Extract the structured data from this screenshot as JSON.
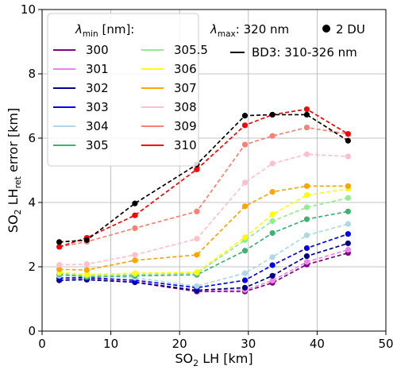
{
  "chart_data": {
    "type": "line",
    "xlabel": "SO₂ LH [km]",
    "ylabel": "SO₂ LHret error [km]",
    "xlim": [
      0,
      50
    ],
    "ylim": [
      0,
      10
    ],
    "xticks": [
      0,
      10,
      20,
      30,
      40,
      50
    ],
    "yticks": [
      0,
      2,
      4,
      6,
      8,
      10
    ],
    "grid": true,
    "x": [
      2.5,
      6.5,
      13.5,
      22.5,
      29.5,
      33.5,
      38.5,
      44.5
    ],
    "legend": {
      "placement": "upper-left",
      "title": "λmin [nm]:",
      "title_symbol": "λ",
      "title_sub": "min",
      "title_rest": " [nm]:"
    },
    "annotations": {
      "lambda_max_symbol": "λ",
      "lambda_max_sub": "max",
      "lambda_max_rest": ": 320 nm",
      "dot_label": "2 DU",
      "line_label": "BD3: 310-326 nm"
    },
    "series": [
      {
        "name": "300",
        "color": "#800080",
        "values": [
          1.58,
          1.6,
          1.52,
          1.23,
          1.23,
          1.5,
          2.07,
          2.43
        ]
      },
      {
        "name": "301",
        "color": "#ee82ee",
        "values": [
          1.6,
          1.62,
          1.53,
          1.27,
          1.28,
          1.57,
          2.15,
          2.53
        ]
      },
      {
        "name": "302",
        "color": "#00008b",
        "values": [
          1.58,
          1.6,
          1.52,
          1.27,
          1.35,
          1.72,
          2.33,
          2.73
        ]
      },
      {
        "name": "303",
        "color": "#0000ff",
        "values": [
          1.65,
          1.66,
          1.58,
          1.35,
          1.58,
          2.05,
          2.58,
          3.02
        ]
      },
      {
        "name": "304",
        "color": "#add8e6",
        "values": [
          1.72,
          1.72,
          1.66,
          1.4,
          1.8,
          2.3,
          2.98,
          3.33
        ]
      },
      {
        "name": "305",
        "color": "#3cb371",
        "values": [
          1.77,
          1.68,
          1.72,
          1.75,
          2.5,
          3.05,
          3.48,
          3.72
        ]
      },
      {
        "name": "305.5",
        "color": "#90ee90",
        "values": [
          1.8,
          1.73,
          1.77,
          1.8,
          2.83,
          3.42,
          3.85,
          4.14
        ]
      },
      {
        "name": "306",
        "color": "#ffff00",
        "values": [
          1.83,
          1.76,
          1.8,
          1.83,
          2.92,
          3.63,
          4.23,
          4.42
        ]
      },
      {
        "name": "307",
        "color": "#ffa500",
        "values": [
          1.92,
          1.9,
          2.2,
          2.37,
          3.88,
          4.33,
          4.51,
          4.51
        ]
      },
      {
        "name": "308",
        "color": "#ffc0cb",
        "values": [
          2.06,
          2.08,
          2.37,
          2.87,
          4.62,
          5.21,
          5.5,
          5.43
        ]
      },
      {
        "name": "309",
        "color": "#fa8072",
        "values": [
          2.62,
          2.78,
          3.2,
          3.72,
          5.8,
          6.07,
          6.33,
          6.13
        ]
      },
      {
        "name": "310",
        "color": "#ff0000",
        "values": [
          2.62,
          2.9,
          3.6,
          5.03,
          6.4,
          6.73,
          6.9,
          6.13
        ]
      },
      {
        "name": "",
        "color": "#000000",
        "values": [
          2.77,
          2.83,
          3.97,
          5.18,
          6.7,
          6.73,
          6.73,
          5.92
        ]
      }
    ]
  }
}
